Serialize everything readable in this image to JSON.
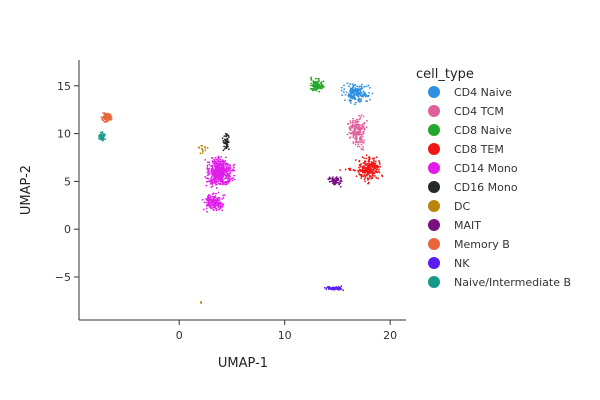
{
  "chart_data": {
    "type": "scatter",
    "xlabel": "UMAP-1",
    "ylabel": "UMAP-2",
    "xlim": [
      -9.5,
      21.5
    ],
    "ylim": [
      -9.5,
      17.7
    ],
    "xticks": [
      0,
      10,
      20
    ],
    "yticks": [
      -5,
      0,
      5,
      10,
      15
    ],
    "grid": false,
    "legend": {
      "title": "cell_type",
      "position": "right"
    },
    "series": [
      {
        "name": "CD4 Naive",
        "color": "#2f8fe0",
        "clusters": [
          {
            "x": [
              15.0,
              18.5
            ],
            "y": [
              13.0,
              15.5
            ],
            "n": 180
          }
        ]
      },
      {
        "name": "CD4 TCM",
        "color": "#e0609b",
        "clusters": [
          {
            "x": [
              15.8,
              18.0
            ],
            "y": [
              8.0,
              12.5
            ],
            "n": 180
          }
        ]
      },
      {
        "name": "CD8 Naive",
        "color": "#23a629",
        "clusters": [
          {
            "x": [
              12.0,
              14.0
            ],
            "y": [
              14.0,
              16.0
            ],
            "n": 90
          }
        ]
      },
      {
        "name": "CD8 TEM",
        "color": "#f01515",
        "clusters": [
          {
            "x": [
              16.5,
              19.5
            ],
            "y": [
              4.5,
              8.0
            ],
            "n": 220
          },
          {
            "x": [
              15.0,
              17.0
            ],
            "y": [
              6.0,
              6.5
            ],
            "n": 10
          }
        ]
      },
      {
        "name": "CD14 Mono",
        "color": "#e01ee8",
        "clusters": [
          {
            "x": [
              2.2,
              5.5
            ],
            "y": [
              4.0,
              8.0
            ],
            "n": 520
          },
          {
            "x": [
              2.0,
              4.5
            ],
            "y": [
              1.5,
              4.0
            ],
            "n": 180
          }
        ]
      },
      {
        "name": "CD16 Mono",
        "color": "#252a26",
        "clusters": [
          {
            "x": [
              4.0,
              5.0
            ],
            "y": [
              8.0,
              10.4
            ],
            "n": 45
          }
        ]
      },
      {
        "name": "DC",
        "color": "#b8860b",
        "clusters": [
          {
            "x": [
              1.6,
              2.8
            ],
            "y": [
              7.8,
              8.9
            ],
            "n": 14
          },
          {
            "x": [
              2.0,
              2.2
            ],
            "y": [
              -7.8,
              -7.5
            ],
            "n": 3
          }
        ]
      },
      {
        "name": "MAIT",
        "color": "#7a1183",
        "clusters": [
          {
            "x": [
              13.9,
              15.8
            ],
            "y": [
              4.2,
              5.8
            ],
            "n": 60
          }
        ]
      },
      {
        "name": "Memory B",
        "color": "#e8653c",
        "clusters": [
          {
            "x": [
              -7.5,
              -6.2
            ],
            "y": [
              11.0,
              12.4
            ],
            "n": 80
          }
        ]
      },
      {
        "name": "NK",
        "color": "#5a1ff0",
        "clusters": [
          {
            "x": [
              13.5,
              15.8
            ],
            "y": [
              -6.5,
              -5.9
            ],
            "n": 60
          }
        ]
      },
      {
        "name": "Naive/Intermediate B",
        "color": "#16998a",
        "clusters": [
          {
            "x": [
              -7.8,
              -6.8
            ],
            "y": [
              9.0,
              10.5
            ],
            "n": 40
          }
        ]
      }
    ]
  }
}
